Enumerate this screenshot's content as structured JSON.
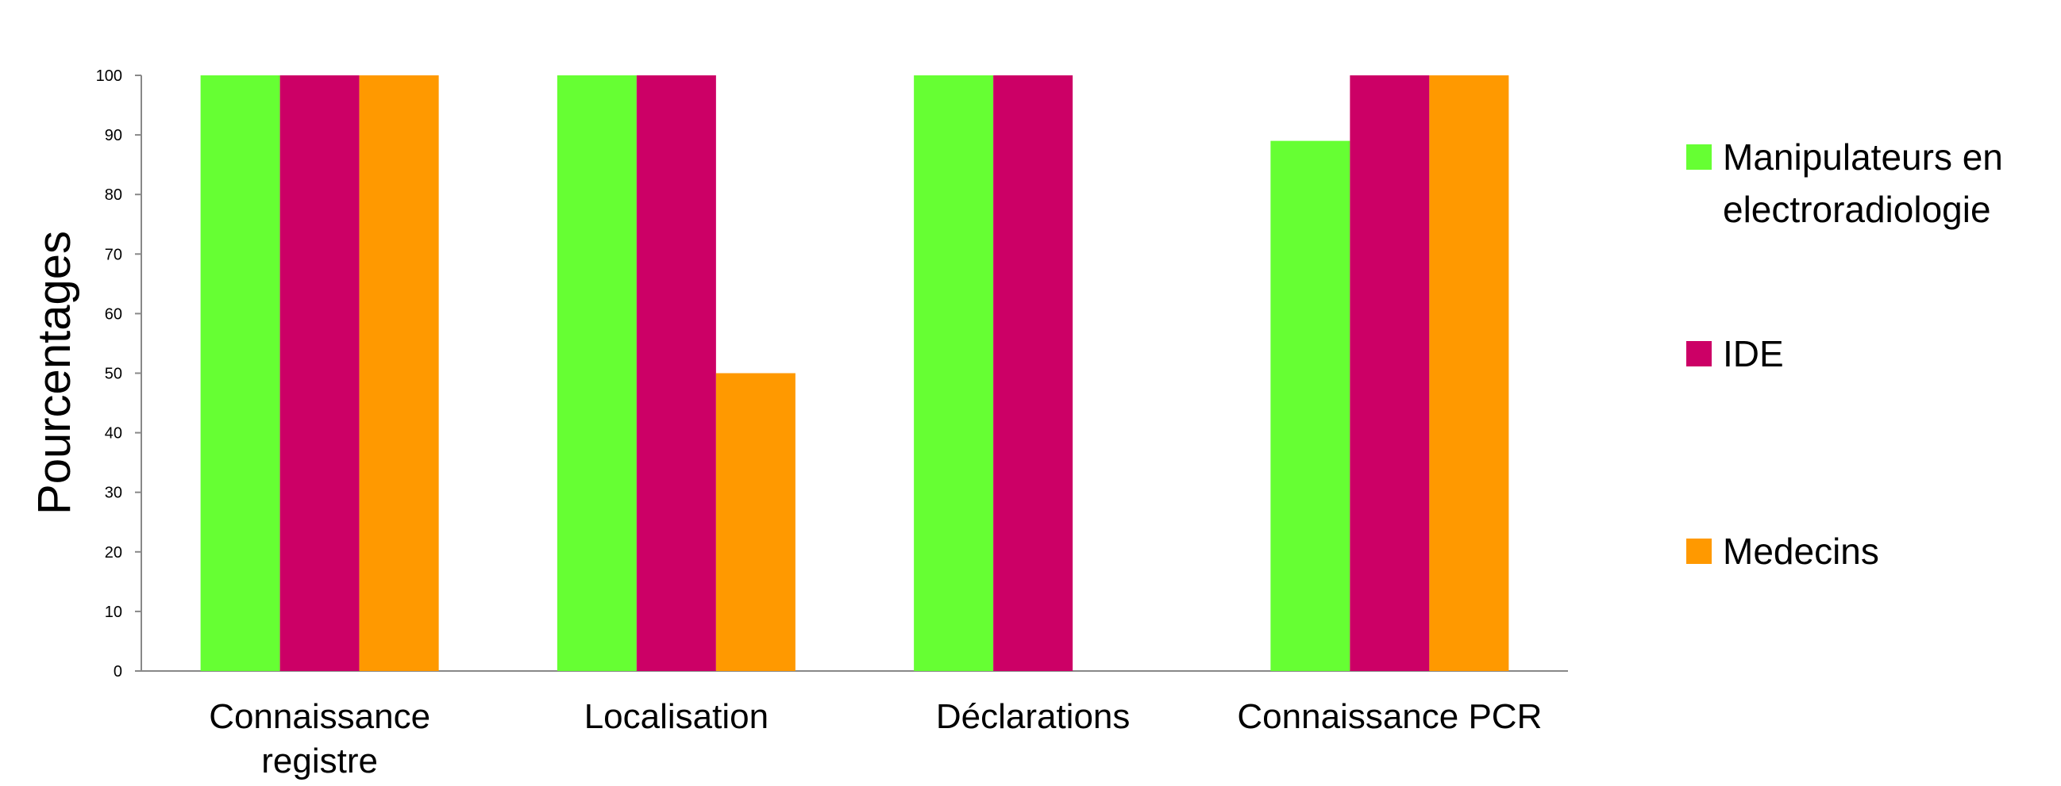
{
  "chart_data": {
    "type": "bar",
    "title": "",
    "ylabel": "Pourcentages",
    "xlabel": "",
    "ylim": [
      0,
      100
    ],
    "yticks": [
      0,
      10,
      20,
      30,
      40,
      50,
      60,
      70,
      80,
      90,
      100
    ],
    "categories": [
      [
        "Connaissance",
        "registre"
      ],
      [
        "Localisation"
      ],
      [
        "Déclarations"
      ],
      [
        "Connaissance PCR"
      ]
    ],
    "series": [
      {
        "name": [
          "Manipulateurs en",
          "electroradiologie"
        ],
        "color": "#66ff33",
        "values": [
          100,
          100,
          100,
          89
        ]
      },
      {
        "name": [
          "IDE"
        ],
        "color": "#cc0066",
        "values": [
          100,
          100,
          100,
          100
        ]
      },
      {
        "name": [
          "Medecins"
        ],
        "color": "#ff9900",
        "values": [
          100,
          50,
          0,
          100
        ]
      }
    ],
    "grid": false,
    "legend_position": "right"
  }
}
